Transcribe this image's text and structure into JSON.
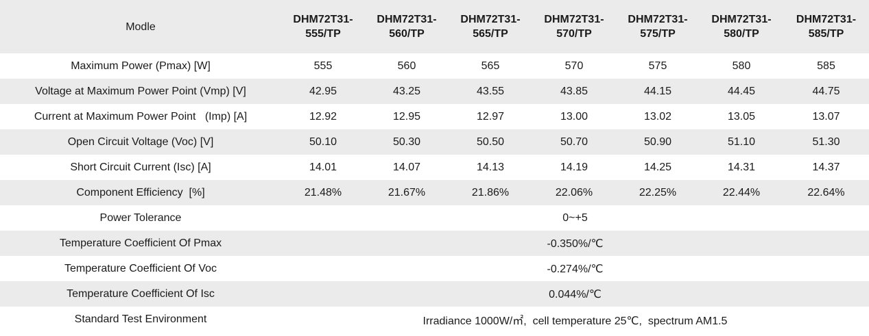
{
  "table": {
    "header_label": "Modle",
    "models": [
      {
        "line1": "DHM72T31-",
        "line2": "555/TP"
      },
      {
        "line1": "DHM72T31-",
        "line2": "560/TP"
      },
      {
        "line1": "DHM72T31-",
        "line2": "565/TP"
      },
      {
        "line1": "DHM72T31-",
        "line2": "570/TP"
      },
      {
        "line1": "DHM72T31-",
        "line2": "575/TP"
      },
      {
        "line1": "DHM72T31-",
        "line2": "580/TP"
      },
      {
        "line1": "DHM72T31-",
        "line2": "585/TP"
      }
    ],
    "rows": [
      {
        "label": "Maximum Power (Pmax) [W]",
        "values": [
          "555",
          "560",
          "565",
          "570",
          "575",
          "580",
          "585"
        ]
      },
      {
        "label": "Voltage at Maximum Power Point (Vmp) [V]",
        "values": [
          "42.95",
          "43.25",
          "43.55",
          "43.85",
          "44.15",
          "44.45",
          "44.75"
        ]
      },
      {
        "label": "Current at Maximum Power Point   (Imp) [A]",
        "values": [
          "12.92",
          "12.95",
          "12.97",
          "13.00",
          "13.02",
          "13.05",
          "13.07"
        ]
      },
      {
        "label": "Open Circuit Voltage (Voc) [V]",
        "values": [
          "50.10",
          "50.30",
          "50.50",
          "50.70",
          "50.90",
          "51.10",
          "51.30"
        ]
      },
      {
        "label": "Short Circuit Current (Isc) [A]",
        "values": [
          "14.01",
          "14.07",
          "14.13",
          "14.19",
          "14.25",
          "14.31",
          "14.37"
        ]
      },
      {
        "label": "Component Efficiency  [%]",
        "values": [
          "21.48%",
          "21.67%",
          "21.86%",
          "22.06%",
          "22.25%",
          "22.44%",
          "22.64%"
        ]
      }
    ],
    "merged_rows": [
      {
        "label": "Power Tolerance",
        "value": "0~+5"
      },
      {
        "label": "Temperature Coefficient Of Pmax",
        "value": "-0.350%/℃"
      },
      {
        "label": "Temperature Coefficient Of Voc",
        "value": "-0.274%/℃"
      },
      {
        "label": "Temperature Coefficient Of Isc",
        "value": "0.044%/℃"
      },
      {
        "label": "Standard Test Environment",
        "value": "Irradiance 1000W/㎡,  cell temperature 25℃,  spectrum AM1.5"
      }
    ]
  }
}
